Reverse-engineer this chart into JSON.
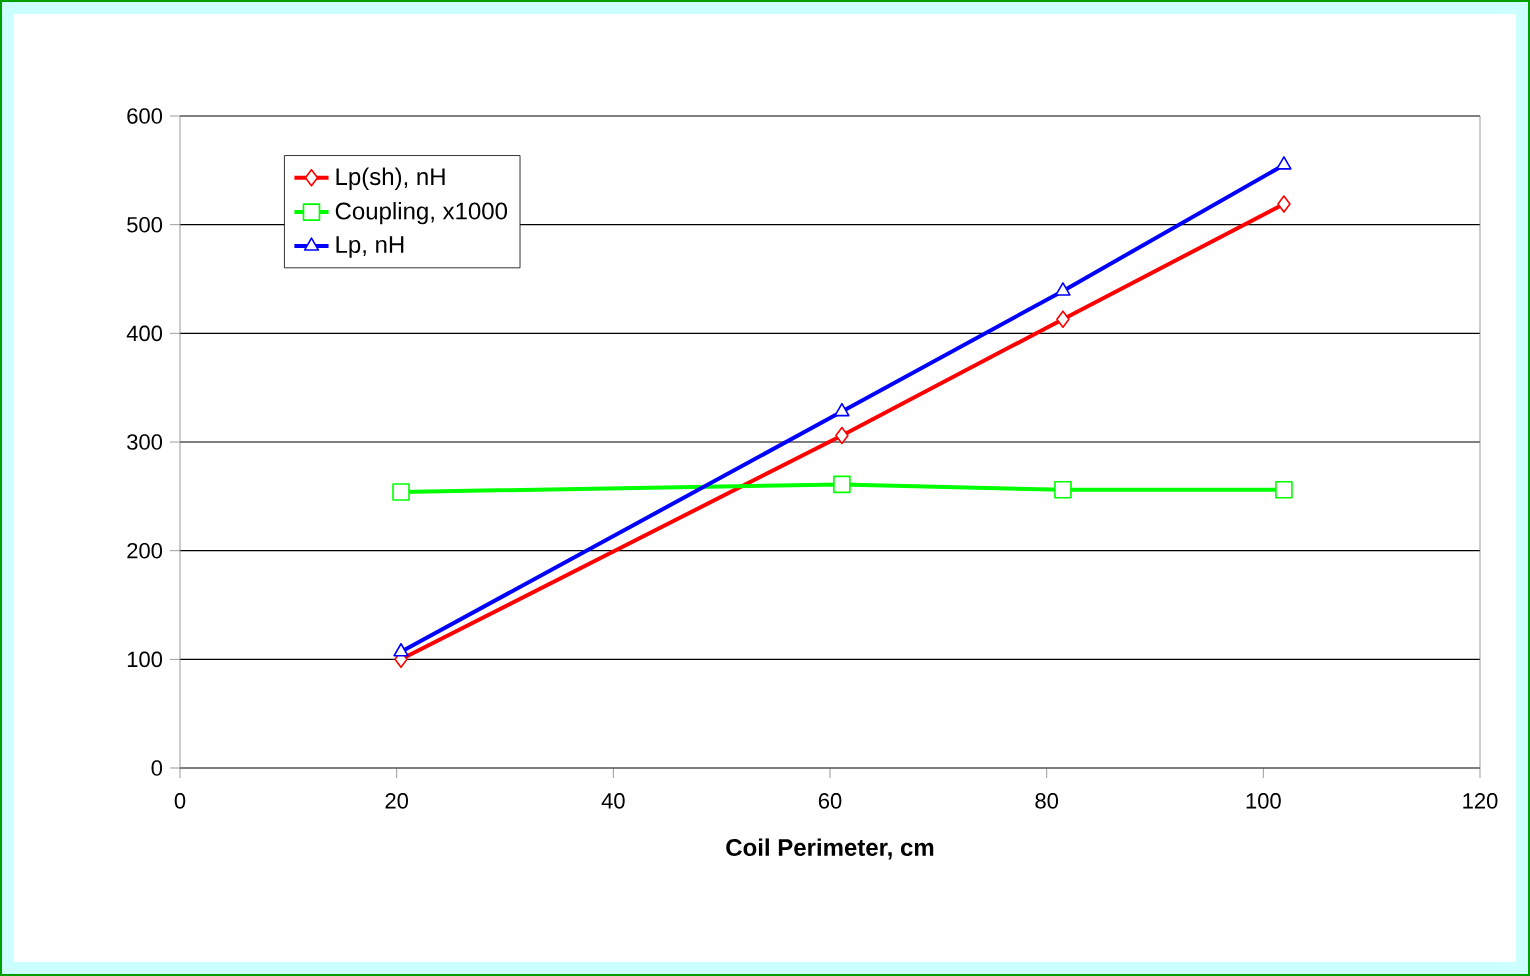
{
  "chart_data": {
    "type": "line",
    "xlabel": "Coil Perimeter, cm",
    "x": [
      20.4,
      61.1,
      81.5,
      101.9
    ],
    "series": [
      {
        "name": "Lp(sh), nH",
        "color": "#ff0000",
        "marker": "diamond",
        "values": [
          100,
          306,
          413,
          519
        ]
      },
      {
        "name": "Coupling, x1000",
        "color": "#00ff00",
        "marker": "square",
        "values": [
          254,
          261,
          256,
          256
        ]
      },
      {
        "name": "Lp, nH",
        "color": "#0000ff",
        "marker": "triangle",
        "values": [
          107,
          328,
          439,
          555
        ]
      }
    ],
    "xlim": [
      0,
      120
    ],
    "xticks": [
      0,
      20,
      40,
      60,
      80,
      100,
      120
    ],
    "ylim": [
      0,
      600
    ],
    "yticks": [
      0,
      100,
      200,
      300,
      400,
      500,
      600
    ],
    "grid": "y",
    "legend": "top left",
    "line_style": "solid"
  }
}
